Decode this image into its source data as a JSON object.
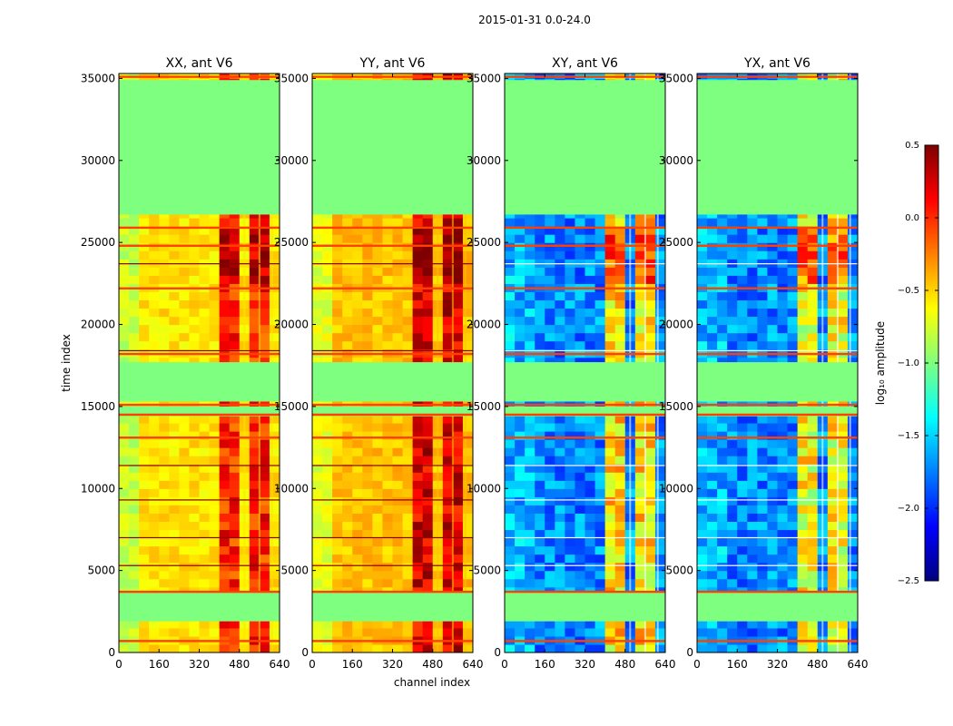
{
  "suptitle": "2015-01-31 0.0-24.0",
  "colors": {
    "empty": "#7fff7f",
    "flag_line": "#ff4000",
    "dark_line": "#8b0000",
    "white_line": "#ffffff",
    "jet": [
      "#00007f",
      "#0000ff",
      "#007fff",
      "#00ffff",
      "#7fff7f",
      "#ffff00",
      "#ff7f00",
      "#ff0000",
      "#7f0000"
    ]
  },
  "chart_data": {
    "type": "heatmap",
    "panels": [
      {
        "title": "XX, ant V6",
        "kind": "auto",
        "base_level": -0.55,
        "peak_level": 0.1
      },
      {
        "title": "YY, ant V6",
        "kind": "auto",
        "base_level": -0.45,
        "peak_level": 0.3
      },
      {
        "title": "XY, ant V6",
        "kind": "cross",
        "base_level": -2.0,
        "peak_level": -0.4
      },
      {
        "title": "YX, ant V6",
        "kind": "cross",
        "base_level": -2.0,
        "peak_level": -0.5
      }
    ],
    "xlabel": "channel index",
    "ylabel": "time index",
    "xlim": [
      0,
      640
    ],
    "ylim": [
      0,
      35300
    ],
    "xticks": [
      "0",
      "160",
      "320",
      "480",
      "640"
    ],
    "xtick_values": [
      0,
      160,
      320,
      480,
      640
    ],
    "yticks": [
      "0",
      "5000",
      "10000",
      "15000",
      "20000",
      "25000",
      "30000",
      "35000"
    ],
    "ytick_values": [
      0,
      5000,
      10000,
      15000,
      20000,
      25000,
      30000,
      35000
    ],
    "empty_time_ranges": [
      [
        1900,
        3700
      ],
      [
        14400,
        15000
      ],
      [
        15300,
        17700
      ],
      [
        26700,
        34900
      ]
    ],
    "band_channels": [
      [
        410,
        500
      ],
      [
        500,
        560
      ],
      [
        560,
        610
      ]
    ],
    "flagged_times": [
      700,
      3700,
      13100,
      14500,
      15100,
      18200,
      22200,
      24800,
      25900,
      35100
    ],
    "dark_times": [
      5300,
      7000,
      9300,
      11400,
      18400,
      23700
    ],
    "colorbar": {
      "label": "log₁₀ amplitude",
      "vmin": -2.5,
      "vmax": 0.5,
      "tick_values": [
        0.5,
        0.0,
        -0.5,
        -1.0,
        -1.5,
        -2.0,
        -2.5
      ],
      "tick_labels": [
        "0.5",
        "0.0",
        "−0.5",
        "−1.0",
        "−1.5",
        "−2.0",
        "−2.5"
      ]
    }
  }
}
